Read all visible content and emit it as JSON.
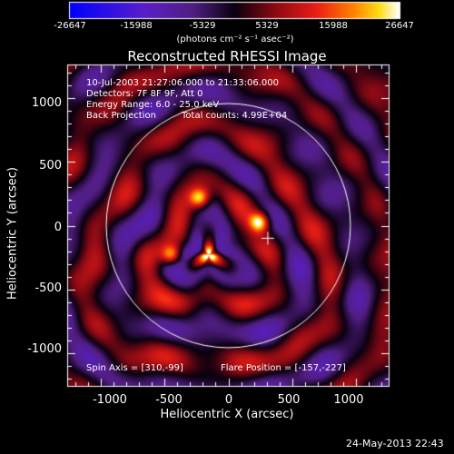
{
  "chart_data": {
    "type": "heatmap",
    "title": "Reconstructed RHESSI Image",
    "xlabel": "Heliocentric X (arcsec)",
    "ylabel": "Heliocentric Y (arcsec)",
    "xlim": [
      -1260,
      1260
    ],
    "ylim": [
      -1260,
      1260
    ],
    "x_ticks": [
      -1000,
      -500,
      0,
      500,
      1000
    ],
    "y_ticks": [
      -1000,
      -500,
      0,
      500,
      1000
    ],
    "colorbar": {
      "ticks": [
        "-26647",
        "-15988",
        "-5329",
        "5329",
        "15988",
        "26647"
      ],
      "range": [
        -26647,
        26647
      ],
      "unit_label": "(photons cm⁻² s⁻¹ asec⁻²)"
    },
    "annotations": {
      "time_range": "10-Jul-2003 21:27:06.000 to 21:33:06.000",
      "detectors": "Detectors: 7F 8F 9F, Att 0",
      "energy_range": "Energy Range: 6.0 - 25.0 keV",
      "method": "Back Projection",
      "total_counts": "Total counts: 4.99E+04",
      "spin_axis": "Spin Axis = [310,-99]",
      "flare_position": "Flare Position = [-157,-227]"
    },
    "sun_circle": {
      "center": [
        0,
        0
      ],
      "radius": 960
    },
    "spin_axis_marker": [
      310,
      -99
    ],
    "bright_sources": [
      {
        "x": -157,
        "y": -227,
        "level": 1.0
      },
      {
        "x": -450,
        "y": -230,
        "level": 0.85
      },
      {
        "x": -230,
        "y": 220,
        "level": 0.8
      },
      {
        "x": 240,
        "y": 30,
        "level": 0.85
      }
    ]
  },
  "footer": {
    "timestamp": "24-May-2013 22:43"
  }
}
